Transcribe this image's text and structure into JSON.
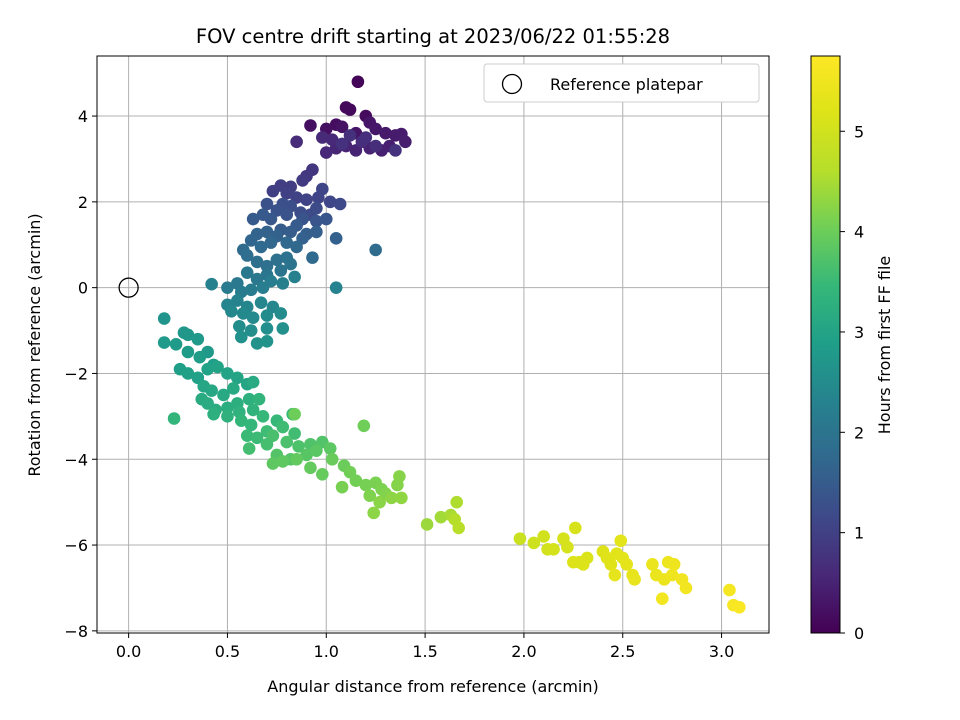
{
  "chart_data": {
    "type": "scatter",
    "title": "FOV centre drift starting at 2023/06/22 01:55:28",
    "xlabel": "Angular distance from reference (arcmin)",
    "ylabel": "Rotation from reference (arcmin)",
    "xlim": [
      -0.16,
      3.24
    ],
    "ylim": [
      -8.05,
      5.4
    ],
    "x_ticks": [
      0.0,
      0.5,
      1.0,
      1.5,
      2.0,
      2.5,
      3.0
    ],
    "x_tick_labels": [
      "0.0",
      "0.5",
      "1.0",
      "1.5",
      "2.0",
      "2.5",
      "3.0"
    ],
    "y_ticks": [
      -8,
      -6,
      -4,
      -2,
      0,
      2,
      4
    ],
    "y_tick_labels": [
      "−8",
      "−6",
      "−4",
      "−2",
      "0",
      "2",
      "4"
    ],
    "grid": true,
    "legend": {
      "position": "top-right",
      "entries": [
        {
          "label": "Reference platepar",
          "marker": "open-circle"
        }
      ]
    },
    "reference_point": {
      "x": 0.0,
      "y": 0.0
    },
    "colorbar": {
      "label": "Hours from first FF file",
      "colormap": "viridis",
      "range": [
        0,
        5.75
      ],
      "ticks": [
        0,
        1,
        2,
        3,
        4,
        5
      ],
      "tick_labels": [
        "0",
        "1",
        "2",
        "3",
        "4",
        "5"
      ]
    },
    "point_fields": [
      "x",
      "y",
      "hours"
    ],
    "points": [
      [
        1.16,
        4.8,
        0.05
      ],
      [
        1.1,
        4.2,
        0.1
      ],
      [
        1.12,
        4.15,
        0.12
      ],
      [
        1.2,
        4.0,
        0.15
      ],
      [
        1.05,
        3.8,
        0.18
      ],
      [
        0.92,
        3.78,
        0.2
      ],
      [
        1.0,
        3.7,
        0.22
      ],
      [
        1.08,
        3.75,
        0.25
      ],
      [
        1.15,
        3.6,
        0.28
      ],
      [
        1.22,
        3.85,
        0.3
      ],
      [
        1.25,
        3.7,
        0.32
      ],
      [
        1.3,
        3.6,
        0.35
      ],
      [
        1.35,
        3.55,
        0.38
      ],
      [
        1.38,
        3.58,
        0.4
      ],
      [
        1.4,
        3.4,
        0.42
      ],
      [
        1.32,
        3.3,
        0.44
      ],
      [
        1.28,
        3.2,
        0.46
      ],
      [
        1.22,
        3.25,
        0.48
      ],
      [
        1.15,
        3.2,
        0.5
      ],
      [
        1.1,
        3.3,
        0.52
      ],
      [
        1.05,
        3.25,
        0.55
      ],
      [
        1.0,
        3.15,
        0.57
      ],
      [
        1.03,
        3.45,
        0.6
      ],
      [
        0.98,
        3.5,
        0.62
      ],
      [
        0.85,
        3.4,
        0.64
      ],
      [
        1.18,
        3.4,
        0.66
      ],
      [
        1.25,
        3.3,
        0.68
      ],
      [
        1.2,
        3.5,
        0.7
      ],
      [
        1.12,
        3.55,
        0.72
      ],
      [
        1.08,
        3.35,
        0.74
      ],
      [
        1.35,
        3.2,
        0.76
      ],
      [
        0.93,
        2.75,
        0.8
      ],
      [
        0.9,
        2.6,
        0.85
      ],
      [
        0.88,
        2.5,
        0.9
      ],
      [
        0.82,
        2.35,
        0.92
      ],
      [
        0.77,
        2.38,
        0.95
      ],
      [
        0.73,
        2.25,
        0.98
      ],
      [
        0.8,
        2.2,
        1.0
      ],
      [
        0.85,
        2.1,
        1.02
      ],
      [
        0.9,
        2.05,
        1.05
      ],
      [
        0.96,
        2.1,
        1.08
      ],
      [
        0.98,
        2.3,
        1.1
      ],
      [
        1.02,
        2.0,
        1.12
      ],
      [
        1.07,
        1.95,
        1.15
      ],
      [
        0.95,
        1.85,
        1.18
      ],
      [
        0.92,
        1.7,
        1.2
      ],
      [
        0.87,
        1.75,
        1.22
      ],
      [
        0.82,
        1.9,
        1.25
      ],
      [
        0.78,
        1.95,
        1.27
      ],
      [
        0.7,
        1.95,
        1.3
      ],
      [
        0.75,
        1.8,
        1.32
      ],
      [
        0.8,
        1.7,
        1.34
      ],
      [
        0.88,
        1.6,
        1.36
      ],
      [
        0.95,
        1.55,
        1.38
      ],
      [
        1.0,
        1.6,
        1.4
      ],
      [
        0.72,
        1.6,
        1.42
      ],
      [
        0.68,
        1.7,
        1.44
      ],
      [
        0.63,
        1.6,
        1.46
      ],
      [
        0.85,
        1.45,
        1.48
      ],
      [
        0.77,
        1.35,
        1.5
      ],
      [
        0.82,
        1.3,
        1.52
      ],
      [
        0.9,
        1.25,
        1.54
      ],
      [
        0.95,
        1.3,
        1.56
      ],
      [
        1.05,
        1.15,
        1.58
      ],
      [
        0.88,
        1.15,
        1.6
      ],
      [
        0.75,
        1.2,
        1.62
      ],
      [
        0.7,
        1.3,
        1.64
      ],
      [
        0.65,
        1.25,
        1.66
      ],
      [
        0.62,
        1.1,
        1.68
      ],
      [
        0.72,
        1.05,
        1.7
      ],
      [
        0.8,
        1.05,
        1.72
      ],
      [
        0.85,
        0.95,
        1.74
      ],
      [
        0.93,
        0.7,
        1.76
      ],
      [
        0.67,
        0.95,
        1.78
      ],
      [
        0.58,
        0.88,
        1.8
      ],
      [
        1.25,
        0.88,
        1.82
      ],
      [
        0.6,
        0.75,
        1.85
      ],
      [
        0.65,
        0.6,
        1.88
      ],
      [
        0.7,
        0.5,
        1.9
      ],
      [
        0.75,
        0.65,
        1.92
      ],
      [
        0.8,
        0.7,
        1.95
      ],
      [
        0.82,
        0.55,
        1.98
      ],
      [
        0.77,
        0.4,
        2.0
      ],
      [
        0.7,
        0.3,
        2.02
      ],
      [
        0.65,
        0.2,
        2.05
      ],
      [
        0.6,
        0.35,
        2.08
      ],
      [
        0.55,
        0.1,
        2.1
      ],
      [
        0.5,
        0.0,
        2.12
      ],
      [
        0.57,
        -0.1,
        2.15
      ],
      [
        0.62,
        -0.05,
        2.17
      ],
      [
        0.68,
        0.0,
        2.2
      ],
      [
        0.72,
        0.15,
        2.22
      ],
      [
        0.78,
        0.1,
        2.24
      ],
      [
        0.84,
        0.25,
        2.26
      ],
      [
        0.42,
        0.08,
        2.28
      ],
      [
        1.05,
        0.0,
        2.3
      ],
      [
        0.55,
        -0.3,
        2.32
      ],
      [
        0.5,
        -0.4,
        2.34
      ],
      [
        0.6,
        -0.45,
        2.36
      ],
      [
        0.67,
        -0.35,
        2.38
      ],
      [
        0.73,
        -0.45,
        2.4
      ],
      [
        0.52,
        -0.55,
        2.42
      ],
      [
        0.58,
        -0.6,
        2.44
      ],
      [
        0.63,
        -0.7,
        2.46
      ],
      [
        0.7,
        -0.65,
        2.48
      ],
      [
        0.77,
        -0.6,
        2.5
      ],
      [
        0.56,
        -0.9,
        2.52
      ],
      [
        0.62,
        -1.0,
        2.54
      ],
      [
        0.7,
        -0.95,
        2.56
      ],
      [
        0.78,
        -0.95,
        2.58
      ],
      [
        0.57,
        -1.15,
        2.6
      ],
      [
        0.65,
        -1.3,
        2.62
      ],
      [
        0.7,
        -1.25,
        2.64
      ],
      [
        0.18,
        -0.72,
        2.7
      ],
      [
        0.28,
        -1.05,
        2.72
      ],
      [
        0.3,
        -1.1,
        2.74
      ],
      [
        0.35,
        -1.2,
        2.76
      ],
      [
        0.4,
        -1.5,
        2.78
      ],
      [
        0.18,
        -1.28,
        2.8
      ],
      [
        0.24,
        -1.32,
        2.82
      ],
      [
        0.3,
        -1.5,
        2.84
      ],
      [
        0.36,
        -1.62,
        2.86
      ],
      [
        0.43,
        -1.8,
        2.88
      ],
      [
        0.26,
        -1.9,
        2.9
      ],
      [
        0.3,
        -2.0,
        2.92
      ],
      [
        0.35,
        -2.1,
        2.94
      ],
      [
        0.4,
        -1.9,
        2.96
      ],
      [
        0.45,
        -1.85,
        2.98
      ],
      [
        0.5,
        -2.0,
        3.0
      ],
      [
        0.55,
        -2.1,
        3.02
      ],
      [
        0.6,
        -2.25,
        3.04
      ],
      [
        0.38,
        -2.3,
        3.06
      ],
      [
        0.42,
        -2.4,
        3.08
      ],
      [
        0.48,
        -2.5,
        3.1
      ],
      [
        0.53,
        -2.35,
        3.12
      ],
      [
        0.63,
        -2.2,
        3.14
      ],
      [
        0.37,
        -2.6,
        3.16
      ],
      [
        0.4,
        -2.7,
        3.18
      ],
      [
        0.44,
        -2.85,
        3.2
      ],
      [
        0.5,
        -2.8,
        3.22
      ],
      [
        0.55,
        -2.7,
        3.24
      ],
      [
        0.61,
        -2.6,
        3.26
      ],
      [
        0.43,
        -2.95,
        3.28
      ],
      [
        0.5,
        -3.0,
        3.3
      ],
      [
        0.56,
        -2.9,
        3.32
      ],
      [
        0.63,
        -2.85,
        3.34
      ],
      [
        0.66,
        -2.6,
        3.36
      ],
      [
        0.23,
        -3.05,
        3.38
      ],
      [
        0.57,
        -3.1,
        3.4
      ],
      [
        0.62,
        -3.2,
        3.42
      ],
      [
        0.68,
        -3.0,
        3.44
      ],
      [
        0.75,
        -3.1,
        3.46
      ],
      [
        0.83,
        -2.95,
        3.48
      ],
      [
        0.6,
        -3.45,
        3.5
      ],
      [
        0.65,
        -3.5,
        3.52
      ],
      [
        0.7,
        -3.35,
        3.54
      ],
      [
        0.78,
        -3.25,
        3.56
      ],
      [
        0.84,
        -3.4,
        3.58
      ],
      [
        0.61,
        -3.75,
        3.6
      ],
      [
        0.7,
        -3.65,
        3.62
      ],
      [
        0.73,
        -3.45,
        3.65
      ],
      [
        0.8,
        -3.6,
        3.68
      ],
      [
        0.86,
        -3.7,
        3.7
      ],
      [
        0.92,
        -3.65,
        3.72
      ],
      [
        0.98,
        -3.6,
        3.74
      ],
      [
        0.75,
        -3.9,
        3.76
      ],
      [
        0.82,
        -4.0,
        3.78
      ],
      [
        0.9,
        -3.9,
        3.8
      ],
      [
        0.95,
        -3.8,
        3.82
      ],
      [
        1.02,
        -3.75,
        3.84
      ],
      [
        0.73,
        -4.1,
        3.86
      ],
      [
        0.78,
        -4.05,
        3.88
      ],
      [
        0.85,
        -4.0,
        3.9
      ],
      [
        0.92,
        -4.2,
        3.92
      ],
      [
        0.98,
        -4.35,
        3.94
      ],
      [
        1.03,
        -4.0,
        3.96
      ],
      [
        1.09,
        -4.15,
        3.98
      ],
      [
        0.84,
        -2.95,
        4.0
      ],
      [
        1.19,
        -3.22,
        4.02
      ],
      [
        1.12,
        -4.3,
        4.04
      ],
      [
        1.15,
        -4.5,
        4.06
      ],
      [
        1.2,
        -4.6,
        4.08
      ],
      [
        1.08,
        -4.65,
        4.1
      ],
      [
        1.25,
        -4.55,
        4.12
      ],
      [
        1.28,
        -4.7,
        4.14
      ],
      [
        1.22,
        -4.85,
        4.16
      ],
      [
        1.3,
        -4.8,
        4.18
      ],
      [
        1.36,
        -4.6,
        4.2
      ],
      [
        1.37,
        -4.4,
        4.22
      ],
      [
        1.27,
        -5.0,
        4.24
      ],
      [
        1.24,
        -5.25,
        4.26
      ],
      [
        1.33,
        -4.9,
        4.28
      ],
      [
        1.38,
        -4.9,
        4.3
      ],
      [
        1.51,
        -5.52,
        4.4
      ],
      [
        1.58,
        -5.35,
        4.45
      ],
      [
        1.63,
        -5.3,
        4.5
      ],
      [
        1.66,
        -5.0,
        4.55
      ],
      [
        1.65,
        -5.4,
        4.6
      ],
      [
        1.67,
        -5.6,
        4.65
      ],
      [
        1.98,
        -5.85,
        4.9
      ],
      [
        2.05,
        -5.95,
        4.95
      ],
      [
        2.1,
        -5.8,
        5.0
      ],
      [
        2.12,
        -6.1,
        5.02
      ],
      [
        2.15,
        -6.1,
        5.04
      ],
      [
        2.2,
        -5.85,
        5.06
      ],
      [
        2.22,
        -6.05,
        5.08
      ],
      [
        2.26,
        -5.6,
        5.1
      ],
      [
        2.28,
        -6.4,
        5.12
      ],
      [
        2.32,
        -6.3,
        5.14
      ],
      [
        2.3,
        -6.45,
        5.16
      ],
      [
        2.25,
        -6.4,
        5.18
      ],
      [
        2.4,
        -6.15,
        5.2
      ],
      [
        2.42,
        -6.3,
        5.22
      ],
      [
        2.44,
        -6.45,
        5.24
      ],
      [
        2.47,
        -6.2,
        5.26
      ],
      [
        2.5,
        -6.3,
        5.28
      ],
      [
        2.49,
        -5.9,
        5.3
      ],
      [
        2.52,
        -6.45,
        5.32
      ],
      [
        2.46,
        -6.7,
        5.34
      ],
      [
        2.55,
        -6.7,
        5.36
      ],
      [
        2.56,
        -6.8,
        5.38
      ],
      [
        2.65,
        -6.45,
        5.4
      ],
      [
        2.67,
        -6.7,
        5.42
      ],
      [
        2.71,
        -6.8,
        5.44
      ],
      [
        2.73,
        -6.4,
        5.46
      ],
      [
        2.76,
        -6.45,
        5.48
      ],
      [
        2.75,
        -6.7,
        5.5
      ],
      [
        2.8,
        -6.8,
        5.52
      ],
      [
        2.82,
        -7.0,
        5.54
      ],
      [
        2.7,
        -7.25,
        5.56
      ],
      [
        3.04,
        -7.05,
        5.6
      ],
      [
        3.06,
        -7.4,
        5.65
      ],
      [
        3.09,
        -7.45,
        5.7
      ]
    ]
  }
}
